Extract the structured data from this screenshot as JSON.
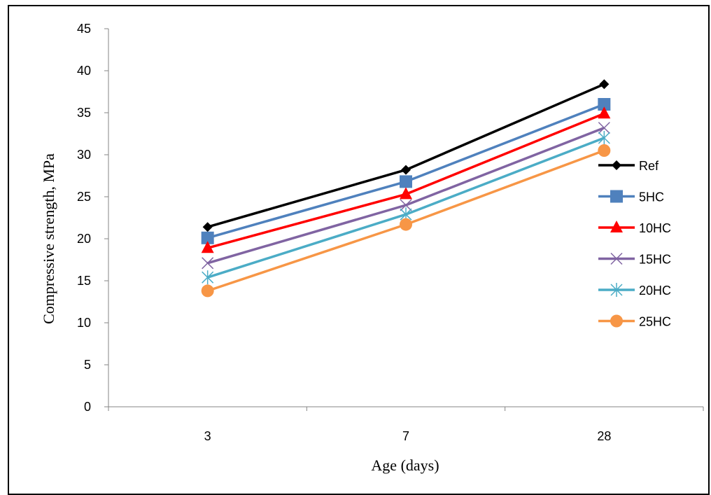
{
  "chart_data": {
    "type": "line",
    "categories": [
      "3",
      "7",
      "28"
    ],
    "xlabel": "Age (days)",
    "ylabel": "Compressive strength, MPa",
    "ylim": [
      0,
      45
    ],
    "yticks": [
      0,
      5,
      10,
      15,
      20,
      25,
      30,
      35,
      40,
      45
    ],
    "grid": false,
    "legend_position": "right",
    "series": [
      {
        "name": "Ref",
        "values": [
          21.4,
          28.2,
          38.4
        ],
        "color": "#000000",
        "marker": "diamond"
      },
      {
        "name": "5HC",
        "values": [
          20.1,
          26.8,
          36.0
        ],
        "color": "#4F81BD",
        "marker": "square"
      },
      {
        "name": "10HC",
        "values": [
          18.9,
          25.3,
          34.9
        ],
        "color": "#FF0000",
        "marker": "triangle"
      },
      {
        "name": "15HC",
        "values": [
          17.1,
          24.0,
          33.2
        ],
        "color": "#8064A2",
        "marker": "x"
      },
      {
        "name": "20HC",
        "values": [
          15.4,
          22.9,
          32.0
        ],
        "color": "#4BACC6",
        "marker": "asterisk"
      },
      {
        "name": "25HC",
        "values": [
          13.8,
          21.7,
          30.5
        ],
        "color": "#F79646",
        "marker": "circle"
      }
    ]
  }
}
